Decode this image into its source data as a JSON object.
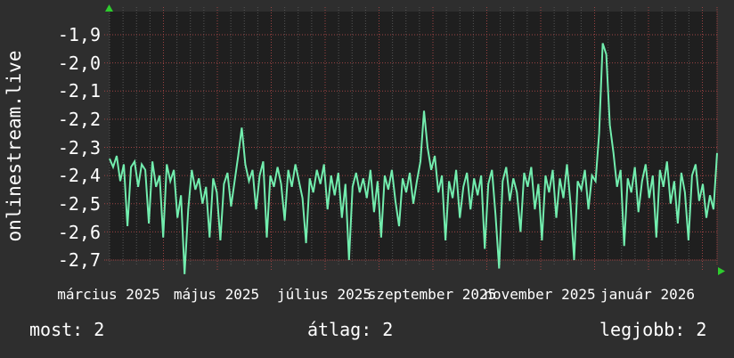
{
  "colors": {
    "background": "#2e2e2e",
    "plot_background": "#1f1f1f",
    "line": "#72edae",
    "grid_red": "#9c4343",
    "grid_gray": "#565656",
    "arrow_green": "#2ecc2e",
    "text": "#ffffff"
  },
  "axis_title_left": "onlinestream.live",
  "footer": {
    "most": "most: 2",
    "atlag": "átlag: 2",
    "legjobb": "legjobb: 2"
  },
  "chart_data": {
    "type": "line",
    "title": "",
    "xlabel": "",
    "ylabel": "onlinestream.live",
    "grid": true,
    "legend_position": "none",
    "ylim": [
      -2.78,
      -1.82
    ],
    "y_tick_labels": [
      "-1,9",
      "-2,0",
      "-2,1",
      "-2,2",
      "-2,3",
      "-2,4",
      "-2,5",
      "-2,6",
      "-2,7"
    ],
    "y_tick_values": [
      -1.9,
      -2.0,
      -2.1,
      -2.2,
      -2.3,
      -2.4,
      -2.5,
      -2.6,
      -2.7
    ],
    "x_tick_labels": [
      {
        "label": "március 2025"
      },
      {
        "label": "május 2025"
      },
      {
        "label": "július 2025"
      },
      {
        "label": "szeptember 2025"
      },
      {
        "label": "november 2025"
      },
      {
        "label": "január 2026"
      }
    ],
    "months_spanned": 12,
    "minor_gridlines_per_month": 4,
    "stats": {
      "most": 2,
      "atlag": 2,
      "legjobb": 2
    },
    "series": [
      {
        "name": "onlinestream.live",
        "color": "#72edae",
        "values": [
          -2.34,
          -2.37,
          -2.33,
          -2.42,
          -2.36,
          -2.58,
          -2.37,
          -2.35,
          -2.44,
          -2.36,
          -2.38,
          -2.57,
          -2.35,
          -2.44,
          -2.4,
          -2.62,
          -2.36,
          -2.42,
          -2.38,
          -2.55,
          -2.47,
          -2.75,
          -2.52,
          -2.38,
          -2.45,
          -2.41,
          -2.5,
          -2.44,
          -2.62,
          -2.41,
          -2.46,
          -2.63,
          -2.43,
          -2.39,
          -2.51,
          -2.42,
          -2.33,
          -2.23,
          -2.36,
          -2.42,
          -2.38,
          -2.52,
          -2.4,
          -2.35,
          -2.62,
          -2.4,
          -2.44,
          -2.37,
          -2.43,
          -2.56,
          -2.38,
          -2.44,
          -2.36,
          -2.42,
          -2.48,
          -2.64,
          -2.41,
          -2.46,
          -2.38,
          -2.43,
          -2.36,
          -2.52,
          -2.4,
          -2.47,
          -2.39,
          -2.55,
          -2.43,
          -2.7,
          -2.44,
          -2.39,
          -2.46,
          -2.41,
          -2.48,
          -2.38,
          -2.53,
          -2.42,
          -2.62,
          -2.4,
          -2.45,
          -2.38,
          -2.49,
          -2.58,
          -2.41,
          -2.46,
          -2.39,
          -2.5,
          -2.42,
          -2.35,
          -2.17,
          -2.3,
          -2.38,
          -2.33,
          -2.46,
          -2.4,
          -2.63,
          -2.42,
          -2.48,
          -2.38,
          -2.55,
          -2.44,
          -2.39,
          -2.52,
          -2.41,
          -2.47,
          -2.4,
          -2.66,
          -2.43,
          -2.38,
          -2.54,
          -2.73,
          -2.42,
          -2.37,
          -2.49,
          -2.41,
          -2.46,
          -2.6,
          -2.39,
          -2.44,
          -2.37,
          -2.52,
          -2.43,
          -2.63,
          -2.4,
          -2.46,
          -2.38,
          -2.55,
          -2.41,
          -2.48,
          -2.36,
          -2.5,
          -2.7,
          -2.42,
          -2.45,
          -2.38,
          -2.52,
          -2.4,
          -2.42,
          -2.25,
          -1.93,
          -1.97,
          -2.22,
          -2.32,
          -2.44,
          -2.38,
          -2.65,
          -2.41,
          -2.46,
          -2.37,
          -2.53,
          -2.42,
          -2.36,
          -2.48,
          -2.4,
          -2.62,
          -2.38,
          -2.44,
          -2.35,
          -2.5,
          -2.42,
          -2.57,
          -2.39,
          -2.46,
          -2.63,
          -2.4,
          -2.36,
          -2.49,
          -2.43,
          -2.55,
          -2.47,
          -2.52,
          -2.32
        ]
      }
    ]
  }
}
